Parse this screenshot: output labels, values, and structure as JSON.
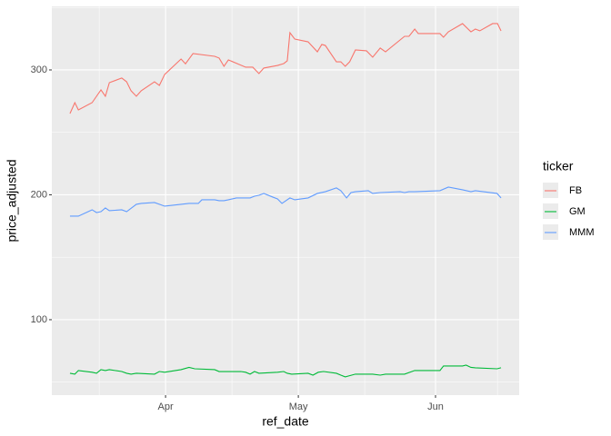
{
  "chart_data": {
    "type": "line",
    "x_label": "ref_date",
    "y_label": "price_adjusted",
    "legend_title": "ticker",
    "legend_position": "right",
    "grid": true,
    "xlim": [
      65.3,
      170.9
    ],
    "xticks": [
      {
        "value": 91,
        "label": "Apr"
      },
      {
        "value": 121,
        "label": "May"
      },
      {
        "value": 152,
        "label": "Jun"
      }
    ],
    "ylim": [
      39.6,
      350.9
    ],
    "yticks": [
      100,
      200,
      300
    ],
    "series": [
      {
        "name": "FB",
        "color": "#f8766d",
        "x": [
          69.4,
          70.5,
          71.3,
          74.4,
          76.4,
          77.4,
          78.3,
          81.1,
          82.2,
          83.2,
          84.4,
          85.5,
          88.5,
          89.6,
          90.8,
          94.5,
          95.5,
          97.2,
          102.1,
          103.1,
          104.2,
          105.2,
          109.1,
          110.7,
          112.1,
          113.2,
          116.3,
          117.7,
          118.5,
          119.1,
          120.2,
          123.2,
          125.3,
          126.3,
          127.1,
          129.6,
          130.6,
          131.6,
          132.6,
          133.9,
          136.4,
          137.8,
          139.5,
          140.7,
          145,
          146,
          147.3,
          148.1,
          153,
          153.8,
          154.9,
          158.1,
          160,
          161,
          162,
          164.9,
          166,
          166.8
        ],
        "values": [
          265.1,
          273.8,
          268,
          273.8,
          284,
          278.9,
          289.8,
          293.5,
          290.5,
          283.3,
          278.9,
          283.3,
          290.5,
          287.6,
          296.4,
          308.7,
          304.9,
          313.1,
          310.9,
          309.5,
          302.9,
          308,
          302.2,
          302.2,
          297.1,
          301.5,
          303.6,
          305.1,
          307.3,
          329.8,
          324.7,
          322.5,
          314.5,
          320.4,
          319.6,
          306.5,
          306.5,
          302.9,
          306.5,
          316,
          315.3,
          310.2,
          317.5,
          314.5,
          326.9,
          326.9,
          332.7,
          329.1,
          329.1,
          326.2,
          330.5,
          337.1,
          330.5,
          332.7,
          331.3,
          337.1,
          337.1,
          331.3
        ]
      },
      {
        "name": "GM",
        "color": "#00ba38",
        "x": [
          69.4,
          70.5,
          71.3,
          74.4,
          75.4,
          76.4,
          77.4,
          78.3,
          81.1,
          82.2,
          83.2,
          84.4,
          88.5,
          89.6,
          90.8,
          94.5,
          96.3,
          97.6,
          102.1,
          103.1,
          108,
          109.1,
          110.1,
          111.1,
          112.1,
          116.3,
          117.7,
          118.5,
          119.5,
          123.2,
          124.3,
          125.5,
          126.7,
          129.6,
          130.6,
          131.6,
          133.9,
          137.8,
          139.5,
          140.7,
          145,
          147.3,
          153,
          153.8,
          158.1,
          158.9,
          160,
          161,
          165.9,
          166.8
        ],
        "values": [
          57.1,
          56.4,
          59.3,
          57.9,
          57.1,
          60,
          59.3,
          60,
          58.5,
          57.1,
          56.4,
          57.1,
          56.4,
          58.5,
          57.9,
          60,
          61.8,
          60.7,
          60,
          58.5,
          58.5,
          57.9,
          56.4,
          58.5,
          57.1,
          57.9,
          58.5,
          57.1,
          56.4,
          57.1,
          55.6,
          57.9,
          58.5,
          57.1,
          55.6,
          54.2,
          56.4,
          56.4,
          55.6,
          56.4,
          56.4,
          59.3,
          59.3,
          62.9,
          62.9,
          63.6,
          61.8,
          61.5,
          60.7,
          61.5
        ]
      },
      {
        "name": "MMM",
        "color": "#619cff",
        "x": [
          69.4,
          71.3,
          74.4,
          75.4,
          76.4,
          77.4,
          78.3,
          81.1,
          82.2,
          84.4,
          85.5,
          88.5,
          90.8,
          94.5,
          96.3,
          98.4,
          99.2,
          102.1,
          103.1,
          104.2,
          105.2,
          107,
          109.1,
          110.1,
          111.1,
          112.1,
          113.2,
          115.2,
          116.3,
          117.3,
          119.1,
          120.2,
          123.2,
          125.3,
          127.1,
          129.6,
          130.6,
          131.9,
          132.9,
          133.9,
          136.8,
          137.8,
          139.5,
          144,
          145,
          146,
          147.3,
          153,
          154.9,
          158.1,
          160,
          161,
          165.9,
          166.8
        ],
        "values": [
          182.9,
          182.9,
          188,
          185.8,
          186.5,
          189.5,
          187.3,
          188,
          186.5,
          192.4,
          193.1,
          193.8,
          190.9,
          192.4,
          193.1,
          193.1,
          196,
          196,
          195.3,
          195.3,
          196,
          197.5,
          197.5,
          197.5,
          198.9,
          199.6,
          201.1,
          198.2,
          196.7,
          193.1,
          197.5,
          196,
          197.5,
          201.1,
          202.5,
          205.5,
          203.3,
          197.5,
          201.8,
          202.5,
          203.3,
          201.1,
          201.8,
          202.5,
          201.8,
          202.5,
          202.5,
          203.3,
          206.2,
          204,
          202.5,
          203.3,
          201.1,
          197.5
        ]
      }
    ]
  }
}
